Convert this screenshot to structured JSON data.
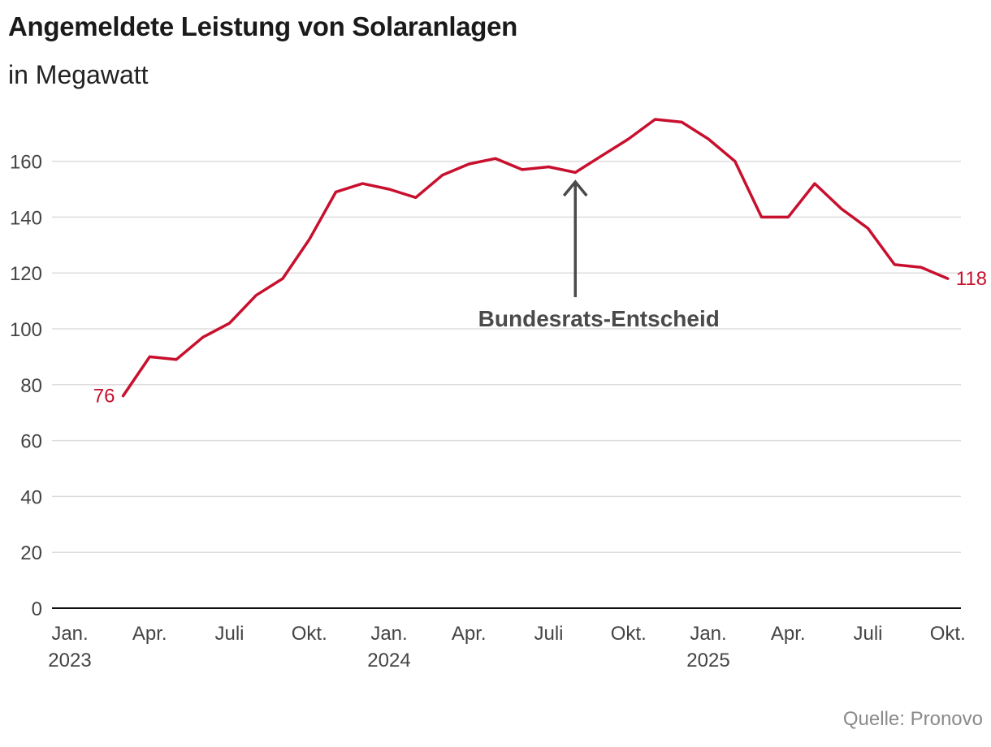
{
  "chart_data": {
    "type": "line",
    "title": "Angemeldete Leistung von Solaranlagen",
    "subtitle": "in Megawatt",
    "source": "Quelle: Pronovo",
    "ylim": [
      0,
      175
    ],
    "yticks": [
      0,
      20,
      40,
      60,
      80,
      100,
      120,
      140,
      160
    ],
    "grid": true,
    "line_color": "#c8102e",
    "x_ticks": [
      {
        "date": "2023-01",
        "label": "Jan.",
        "year": "2023"
      },
      {
        "date": "2023-04",
        "label": "Apr.",
        "year": ""
      },
      {
        "date": "2023-07",
        "label": "Juli",
        "year": ""
      },
      {
        "date": "2023-10",
        "label": "Okt.",
        "year": ""
      },
      {
        "date": "2024-01",
        "label": "Jan.",
        "year": "2024"
      },
      {
        "date": "2024-04",
        "label": "Apr.",
        "year": ""
      },
      {
        "date": "2024-07",
        "label": "Juli",
        "year": ""
      },
      {
        "date": "2024-10",
        "label": "Okt.",
        "year": ""
      },
      {
        "date": "2025-01",
        "label": "Jan.",
        "year": "2025"
      },
      {
        "date": "2025-04",
        "label": "Apr.",
        "year": ""
      },
      {
        "date": "2025-07",
        "label": "Juli",
        "year": ""
      },
      {
        "date": "2025-10",
        "label": "Okt.",
        "year": ""
      }
    ],
    "series": [
      {
        "x": [
          "2023-03",
          "2023-04",
          "2023-05",
          "2023-06",
          "2023-07",
          "2023-08",
          "2023-09",
          "2023-10",
          "2023-11",
          "2023-12",
          "2024-01",
          "2024-02",
          "2024-03",
          "2024-04",
          "2024-05",
          "2024-06",
          "2024-07",
          "2024-08",
          "2024-09",
          "2024-10",
          "2024-11",
          "2024-12",
          "2025-01",
          "2025-02",
          "2025-03",
          "2025-04",
          "2025-05",
          "2025-06",
          "2025-07",
          "2025-08",
          "2025-09",
          "2025-10"
        ],
        "values": [
          76,
          90,
          89,
          97,
          102,
          112,
          118,
          132,
          149,
          152,
          150,
          147,
          155,
          159,
          161,
          157,
          158,
          156,
          162,
          168,
          175,
          174,
          168,
          160,
          140,
          140,
          152,
          143,
          136,
          123,
          122,
          118
        ]
      }
    ],
    "start_label": "76",
    "end_label": "118",
    "annotation": {
      "text": "Bundesrats-Entscheid",
      "date": "2024-08"
    }
  }
}
